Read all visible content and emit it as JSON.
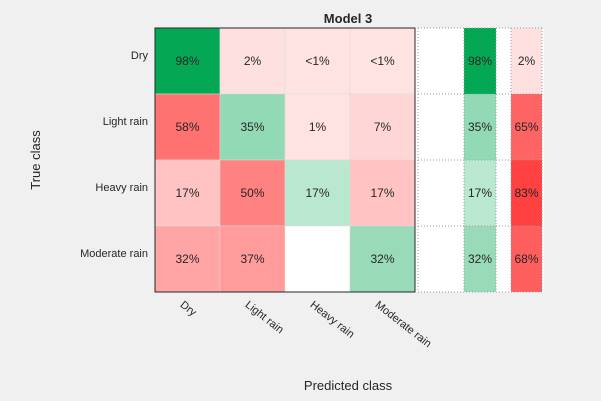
{
  "chart_data": {
    "type": "heatmap",
    "title": "Model 3",
    "xlabel": "Predicted class",
    "ylabel": "True class",
    "classes": [
      "Dry",
      "Light rain",
      "Heavy rain",
      "Moderate rain"
    ],
    "cells": [
      [
        {
          "label": "98%",
          "value": 98,
          "correct": true
        },
        {
          "label": "2%",
          "value": 2,
          "correct": false
        },
        {
          "label": "<1%",
          "value": 0.5,
          "correct": false
        },
        {
          "label": "<1%",
          "value": 0.5,
          "correct": false
        }
      ],
      [
        {
          "label": "58%",
          "value": 58,
          "correct": false
        },
        {
          "label": "35%",
          "value": 35,
          "correct": true
        },
        {
          "label": "1%",
          "value": 1,
          "correct": false
        },
        {
          "label": "7%",
          "value": 7,
          "correct": false
        }
      ],
      [
        {
          "label": "17%",
          "value": 17,
          "correct": false
        },
        {
          "label": "50%",
          "value": 50,
          "correct": false
        },
        {
          "label": "17%",
          "value": 17,
          "correct": true
        },
        {
          "label": "17%",
          "value": 17,
          "correct": false
        }
      ],
      [
        {
          "label": "32%",
          "value": 32,
          "correct": false
        },
        {
          "label": "37%",
          "value": 37,
          "correct": false
        },
        {
          "label": "",
          "value": 0,
          "correct": false
        },
        {
          "label": "32%",
          "value": 32,
          "correct": true
        }
      ]
    ],
    "true_positive_rate": [
      {
        "label": "98%",
        "value": 98
      },
      {
        "label": "35%",
        "value": 35
      },
      {
        "label": "17%",
        "value": 17
      },
      {
        "label": "32%",
        "value": 32
      }
    ],
    "false_negative_rate": [
      {
        "label": "2%",
        "value": 2
      },
      {
        "label": "65%",
        "value": 65
      },
      {
        "label": "83%",
        "value": 83
      },
      {
        "label": "68%",
        "value": 68
      }
    ],
    "colors": {
      "correct_max": "#00a651",
      "incorrect_max": "#ff1f1f",
      "empty": "#ffffff",
      "background": "#f0f0f0"
    }
  }
}
